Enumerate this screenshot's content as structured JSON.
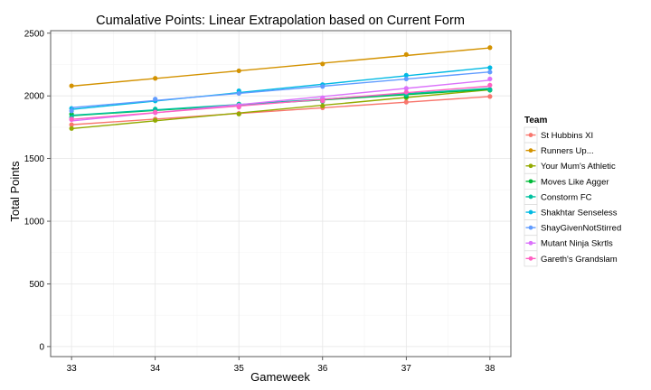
{
  "chart_data": {
    "type": "line",
    "title": "Cumalative Points: Linear Extrapolation based on Current Form",
    "xlabel": "Gameweek",
    "ylabel": "Total Points",
    "x": [
      33,
      34,
      35,
      36,
      37,
      38
    ],
    "x_ticks": [
      "33",
      "34",
      "35",
      "36",
      "37",
      "38"
    ],
    "xlim": [
      33,
      38
    ],
    "y_ticks": [
      "0",
      "500",
      "1000",
      "1500",
      "2000",
      "2500"
    ],
    "ylim": [
      -80,
      2520
    ],
    "grid": true,
    "legend": {
      "title": "Team",
      "position": "right"
    },
    "series": [
      {
        "name": "St Hubbins XI",
        "color": "#F8766D",
        "values": [
          1770,
          1815,
          1860,
          1905,
          1950,
          1995
        ],
        "line": [
          1770,
          1815,
          1860,
          1905,
          1950,
          1995
        ]
      },
      {
        "name": "Runners Up...",
        "color": "#D39200",
        "values": [
          2080,
          2140,
          2200,
          2255,
          2330,
          2385
        ],
        "line": [
          2078,
          2139,
          2200,
          2261,
          2322,
          2383
        ]
      },
      {
        "name": "Your Mum's Athletic",
        "color": "#93AA00",
        "values": [
          1740,
          1805,
          1855,
          1920,
          1985,
          2050
        ],
        "line": [
          1739,
          1801,
          1863,
          1925,
          1987,
          2049
        ]
      },
      {
        "name": "Moves Like Agger",
        "color": "#00BA38",
        "values": [
          1855,
          1885,
          1920,
          1955,
          1995,
          2045
        ],
        "line": [
          1842,
          1884,
          1926,
          1968,
          2010,
          2052
        ]
      },
      {
        "name": "Constorm FC",
        "color": "#00C19F",
        "values": [
          1830,
          1895,
          1935,
          1975,
          2010,
          2050
        ],
        "line": [
          1845,
          1888,
          1931,
          1974,
          2017,
          2060
        ]
      },
      {
        "name": "Shakhtar Senseless",
        "color": "#00B9E3",
        "values": [
          1900,
          1960,
          2040,
          2090,
          2165,
          2225
        ],
        "line": [
          1892,
          1959,
          2026,
          2093,
          2160,
          2227
        ]
      },
      {
        "name": "ShayGivenNotStirred",
        "color": "#619CFF",
        "values": [
          1880,
          1975,
          2020,
          2075,
          2135,
          2190
        ],
        "line": [
          1906,
          1963,
          2020,
          2077,
          2134,
          2191
        ]
      },
      {
        "name": "Mutant Ninja Skrtls",
        "color": "#DB72FB",
        "values": [
          1810,
          1865,
          1925,
          1985,
          2060,
          2135
        ],
        "line": [
          1800,
          1865,
          1930,
          1995,
          2060,
          2125
        ]
      },
      {
        "name": "Gareth's Grandslam",
        "color": "#FF61C3",
        "values": [
          1815,
          1870,
          1910,
          1960,
          2030,
          2085
        ],
        "line": [
          1813,
          1866,
          1919,
          1972,
          2025,
          2078
        ]
      }
    ]
  }
}
